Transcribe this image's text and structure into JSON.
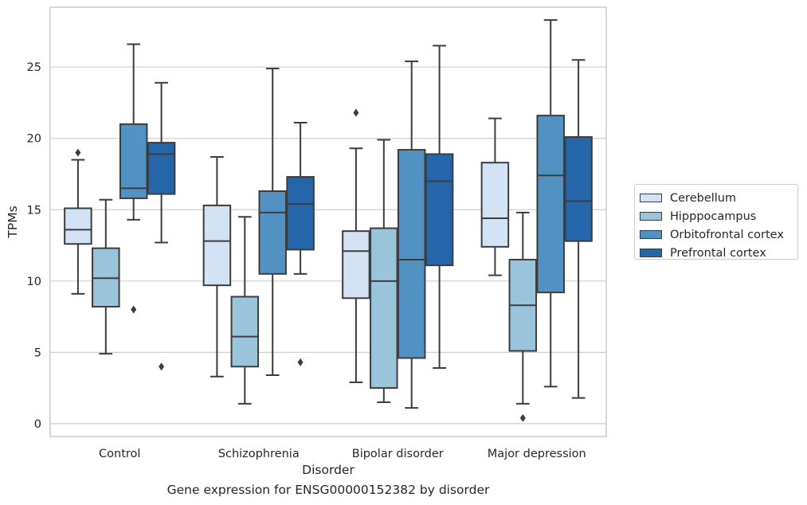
{
  "caption": "Gene expression for ENSG00000152382 by disorder",
  "chart_data": {
    "type": "box",
    "xlabel": "Disorder",
    "ylabel": "TPMs",
    "categories": [
      "Control",
      "Schizophrenia",
      "Bipolar disorder",
      "Major depression"
    ],
    "ylim": [
      -0.9,
      29.2
    ],
    "yticks": [
      0,
      5,
      10,
      15,
      20,
      25
    ],
    "grid": "horizontal",
    "legend_position": "right",
    "series": [
      {
        "name": "Cerebellum",
        "color": "#d4e3f3",
        "boxes": [
          {
            "whislo": 9.1,
            "q1": 12.6,
            "med": 13.6,
            "q3": 15.1,
            "whishi": 18.5,
            "fliers": [
              19.0
            ]
          },
          {
            "whislo": 3.3,
            "q1": 9.7,
            "med": 12.8,
            "q3": 15.3,
            "whishi": 18.7,
            "fliers": []
          },
          {
            "whislo": 2.9,
            "q1": 8.8,
            "med": 12.1,
            "q3": 13.5,
            "whishi": 19.3,
            "fliers": [
              21.8
            ]
          },
          {
            "whislo": 10.4,
            "q1": 12.4,
            "med": 14.4,
            "q3": 18.3,
            "whishi": 21.4,
            "fliers": []
          }
        ]
      },
      {
        "name": "Hipppocampus",
        "color": "#9ac3dc",
        "boxes": [
          {
            "whislo": 4.9,
            "q1": 8.2,
            "med": 10.2,
            "q3": 12.3,
            "whishi": 15.7,
            "fliers": []
          },
          {
            "whislo": 1.4,
            "q1": 4.0,
            "med": 6.1,
            "q3": 8.9,
            "whishi": 14.5,
            "fliers": []
          },
          {
            "whislo": 1.5,
            "q1": 2.5,
            "med": 10.0,
            "q3": 13.7,
            "whishi": 19.9,
            "fliers": []
          },
          {
            "whislo": 1.4,
            "q1": 5.1,
            "med": 8.3,
            "q3": 11.5,
            "whishi": 14.8,
            "fliers": [
              0.4
            ]
          }
        ]
      },
      {
        "name": "Orbitofrontal cortex",
        "color": "#5192c3",
        "boxes": [
          {
            "whislo": 14.3,
            "q1": 15.8,
            "med": 16.5,
            "q3": 21.0,
            "whishi": 26.6,
            "fliers": [
              8.0
            ]
          },
          {
            "whislo": 3.4,
            "q1": 10.5,
            "med": 14.8,
            "q3": 16.3,
            "whishi": 24.9,
            "fliers": []
          },
          {
            "whislo": 1.1,
            "q1": 4.6,
            "med": 11.5,
            "q3": 19.2,
            "whishi": 25.4,
            "fliers": []
          },
          {
            "whislo": 2.6,
            "q1": 9.2,
            "med": 17.4,
            "q3": 21.6,
            "whishi": 28.3,
            "fliers": []
          }
        ]
      },
      {
        "name": "Prefrontal cortex",
        "color": "#2565a9",
        "boxes": [
          {
            "whislo": 12.7,
            "q1": 16.1,
            "med": 18.9,
            "q3": 19.7,
            "whishi": 23.9,
            "fliers": [
              4.0
            ]
          },
          {
            "whislo": 10.5,
            "q1": 12.2,
            "med": 15.4,
            "q3": 17.3,
            "whishi": 21.1,
            "fliers": [
              4.3
            ]
          },
          {
            "whislo": 3.9,
            "q1": 11.1,
            "med": 17.0,
            "q3": 18.9,
            "whishi": 26.5,
            "fliers": []
          },
          {
            "whislo": 1.8,
            "q1": 12.8,
            "med": 15.6,
            "q3": 20.1,
            "whishi": 25.5,
            "fliers": []
          }
        ]
      }
    ]
  }
}
